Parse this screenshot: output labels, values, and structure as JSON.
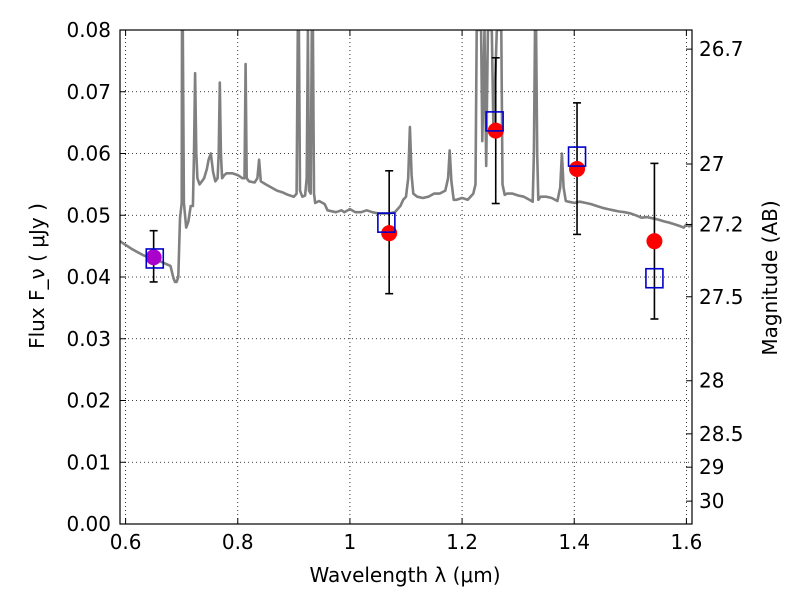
{
  "chart_data": {
    "type": "scatter",
    "xlabel": "Wavelength  λ (μm)",
    "ylabel": "Flux  F_ν  ( μJy )",
    "ylabel_right": "Magnitude (AB)",
    "xlim": [
      0.59,
      1.61
    ],
    "ylim": [
      0.0,
      0.08
    ],
    "xticks": [
      "0.6",
      "0.8",
      "1",
      "1.2",
      "1.4",
      "1.6"
    ],
    "xtick_values": [
      0.6,
      0.8,
      1.0,
      1.2,
      1.4,
      1.6
    ],
    "yticks": [
      "0.00",
      "0.01",
      "0.02",
      "0.03",
      "0.04",
      "0.05",
      "0.06",
      "0.07",
      "0.08"
    ],
    "ytick_values": [
      0.0,
      0.01,
      0.02,
      0.03,
      0.04,
      0.05,
      0.06,
      0.07,
      0.08
    ],
    "right_ticks": [
      {
        "label": "26.7",
        "flux": 0.0769
      },
      {
        "label": "27",
        "flux": 0.0583
      },
      {
        "label": "27.2",
        "flux": 0.0485
      },
      {
        "label": "27.5",
        "flux": 0.0368
      },
      {
        "label": "28",
        "flux": 0.0232
      },
      {
        "label": "28.5",
        "flux": 0.0146
      },
      {
        "label": "29",
        "flux": 0.0092
      },
      {
        "label": "30",
        "flux": 0.0037
      }
    ],
    "grid": true,
    "grid_style": "dotted",
    "colors": {
      "model": "#808080",
      "observed": "#ff0000",
      "model_photometry": "#0000cc",
      "overlap": "#aa00cc",
      "errorbar": "#000000"
    },
    "series": [
      {
        "kind": "model-spectrum",
        "points": [
          [
            0.59,
            0.0458
          ],
          [
            0.6,
            0.0452
          ],
          [
            0.61,
            0.0446
          ],
          [
            0.62,
            0.0441
          ],
          [
            0.63,
            0.0436
          ],
          [
            0.64,
            0.0432
          ],
          [
            0.65,
            0.0429
          ],
          [
            0.66,
            0.0426
          ],
          [
            0.67,
            0.0422
          ],
          [
            0.68,
            0.0418
          ],
          [
            0.685,
            0.0399
          ],
          [
            0.688,
            0.0392
          ],
          [
            0.691,
            0.0392
          ],
          [
            0.694,
            0.04
          ],
          [
            0.697,
            0.0495
          ],
          [
            0.7,
            0.052
          ],
          [
            0.7005,
            0.08
          ],
          [
            0.702,
            0.08
          ],
          [
            0.704,
            0.052
          ],
          [
            0.708,
            0.048
          ],
          [
            0.712,
            0.049
          ],
          [
            0.716,
            0.0515
          ],
          [
            0.72,
            0.0515
          ],
          [
            0.722,
            0.06
          ],
          [
            0.724,
            0.073
          ],
          [
            0.726,
            0.06
          ],
          [
            0.728,
            0.056
          ],
          [
            0.732,
            0.055
          ],
          [
            0.736,
            0.0555
          ],
          [
            0.74,
            0.056
          ],
          [
            0.745,
            0.0575
          ],
          [
            0.748,
            0.059
          ],
          [
            0.752,
            0.06
          ],
          [
            0.756,
            0.057
          ],
          [
            0.76,
            0.0555
          ],
          [
            0.764,
            0.056
          ],
          [
            0.766,
            0.06
          ],
          [
            0.768,
            0.0715
          ],
          [
            0.77,
            0.06
          ],
          [
            0.772,
            0.056
          ],
          [
            0.776,
            0.0565
          ],
          [
            0.78,
            0.0568
          ],
          [
            0.79,
            0.0568
          ],
          [
            0.8,
            0.0565
          ],
          [
            0.808,
            0.056
          ],
          [
            0.812,
            0.056
          ],
          [
            0.814,
            0.0745
          ],
          [
            0.816,
            0.056
          ],
          [
            0.82,
            0.0555
          ],
          [
            0.83,
            0.0553
          ],
          [
            0.835,
            0.056
          ],
          [
            0.838,
            0.059
          ],
          [
            0.841,
            0.0555
          ],
          [
            0.85,
            0.055
          ],
          [
            0.86,
            0.0545
          ],
          [
            0.87,
            0.054
          ],
          [
            0.88,
            0.0537
          ],
          [
            0.89,
            0.0533
          ],
          [
            0.9,
            0.053
          ],
          [
            0.905,
            0.0535
          ],
          [
            0.907,
            0.08
          ],
          [
            0.909,
            0.08
          ],
          [
            0.911,
            0.054
          ],
          [
            0.915,
            0.053
          ],
          [
            0.92,
            0.0532
          ],
          [
            0.923,
            0.056
          ],
          [
            0.925,
            0.08
          ],
          [
            0.927,
            0.054
          ],
          [
            0.93,
            0.0535
          ],
          [
            0.932,
            0.08
          ],
          [
            0.934,
            0.08
          ],
          [
            0.936,
            0.0535
          ],
          [
            0.938,
            0.052
          ],
          [
            0.945,
            0.0523
          ],
          [
            0.955,
            0.0518
          ],
          [
            0.96,
            0.0508
          ],
          [
            0.975,
            0.0505
          ],
          [
            0.985,
            0.0508
          ],
          [
            0.99,
            0.0505
          ],
          [
            1.0,
            0.051
          ],
          [
            1.01,
            0.0505
          ],
          [
            1.02,
            0.0505
          ],
          [
            1.03,
            0.0508
          ],
          [
            1.04,
            0.0505
          ],
          [
            1.05,
            0.0503
          ],
          [
            1.06,
            0.0503
          ],
          [
            1.07,
            0.0503
          ],
          [
            1.08,
            0.0505
          ],
          [
            1.09,
            0.0515
          ],
          [
            1.095,
            0.0525
          ],
          [
            1.1,
            0.053
          ],
          [
            1.104,
            0.056
          ],
          [
            1.107,
            0.0643
          ],
          [
            1.11,
            0.0565
          ],
          [
            1.113,
            0.0535
          ],
          [
            1.12,
            0.053
          ],
          [
            1.13,
            0.0528
          ],
          [
            1.14,
            0.053
          ],
          [
            1.15,
            0.0535
          ],
          [
            1.16,
            0.0535
          ],
          [
            1.17,
            0.054
          ],
          [
            1.175,
            0.056
          ],
          [
            1.178,
            0.0605
          ],
          [
            1.181,
            0.0555
          ],
          [
            1.185,
            0.0525
          ],
          [
            1.19,
            0.0525
          ],
          [
            1.2,
            0.0528
          ],
          [
            1.21,
            0.0525
          ],
          [
            1.215,
            0.053
          ],
          [
            1.22,
            0.0535
          ],
          [
            1.224,
            0.055
          ],
          [
            1.226,
            0.08
          ],
          [
            1.234,
            0.08
          ],
          [
            1.236,
            0.062
          ],
          [
            1.24,
            0.08
          ],
          [
            1.243,
            0.058
          ],
          [
            1.246,
            0.08
          ],
          [
            1.253,
            0.08
          ],
          [
            1.256,
            0.063
          ],
          [
            1.262,
            0.08
          ],
          [
            1.27,
            0.08
          ],
          [
            1.272,
            0.055
          ],
          [
            1.276,
            0.0533
          ],
          [
            1.28,
            0.0535
          ],
          [
            1.29,
            0.0535
          ],
          [
            1.3,
            0.0532
          ],
          [
            1.31,
            0.053
          ],
          [
            1.32,
            0.0525
          ],
          [
            1.326,
            0.0522
          ],
          [
            1.328,
            0.06
          ],
          [
            1.33,
            0.08
          ],
          [
            1.332,
            0.08
          ],
          [
            1.334,
            0.06
          ],
          [
            1.336,
            0.0525
          ],
          [
            1.34,
            0.053
          ],
          [
            1.35,
            0.053
          ],
          [
            1.36,
            0.0528
          ],
          [
            1.37,
            0.0523
          ],
          [
            1.375,
            0.0545
          ],
          [
            1.378,
            0.06
          ],
          [
            1.381,
            0.0545
          ],
          [
            1.385,
            0.0523
          ],
          [
            1.39,
            0.0522
          ],
          [
            1.4,
            0.052
          ],
          [
            1.41,
            0.0522
          ],
          [
            1.42,
            0.052
          ],
          [
            1.43,
            0.0518
          ],
          [
            1.44,
            0.0515
          ],
          [
            1.45,
            0.0512
          ],
          [
            1.46,
            0.051
          ],
          [
            1.47,
            0.0508
          ],
          [
            1.48,
            0.0506
          ],
          [
            1.49,
            0.0505
          ],
          [
            1.5,
            0.0503
          ],
          [
            1.51,
            0.05
          ],
          [
            1.52,
            0.0496
          ],
          [
            1.53,
            0.0497
          ],
          [
            1.54,
            0.0495
          ],
          [
            1.55,
            0.0493
          ],
          [
            1.56,
            0.049
          ],
          [
            1.57,
            0.0488
          ],
          [
            1.58,
            0.0485
          ],
          [
            1.59,
            0.0482
          ],
          [
            1.595,
            0.048
          ],
          [
            1.6,
            0.0485
          ],
          [
            1.605,
            0.0482
          ],
          [
            1.61,
            0.0485
          ]
        ]
      },
      {
        "kind": "observed",
        "points": [
          {
            "x": 0.65,
            "y": 0.0432,
            "yerr_low": 0.004,
            "yerr_high": 0.0043
          },
          {
            "x": 1.07,
            "y": 0.0471,
            "yerr_low": 0.0098,
            "yerr_high": 0.0101
          },
          {
            "x": 1.26,
            "y": 0.0637,
            "yerr_low": 0.0118,
            "yerr_high": 0.0118
          },
          {
            "x": 1.405,
            "y": 0.0575,
            "yerr_low": 0.0106,
            "yerr_high": 0.0107
          },
          {
            "x": 1.543,
            "y": 0.0458,
            "yerr_low": 0.0126,
            "yerr_high": 0.0126
          }
        ]
      },
      {
        "kind": "model-photometry",
        "points": [
          {
            "x": 0.652,
            "y": 0.043
          },
          {
            "x": 1.065,
            "y": 0.0488
          },
          {
            "x": 1.258,
            "y": 0.0652
          },
          {
            "x": 1.405,
            "y": 0.0595
          },
          {
            "x": 1.543,
            "y": 0.0398
          }
        ]
      }
    ]
  }
}
